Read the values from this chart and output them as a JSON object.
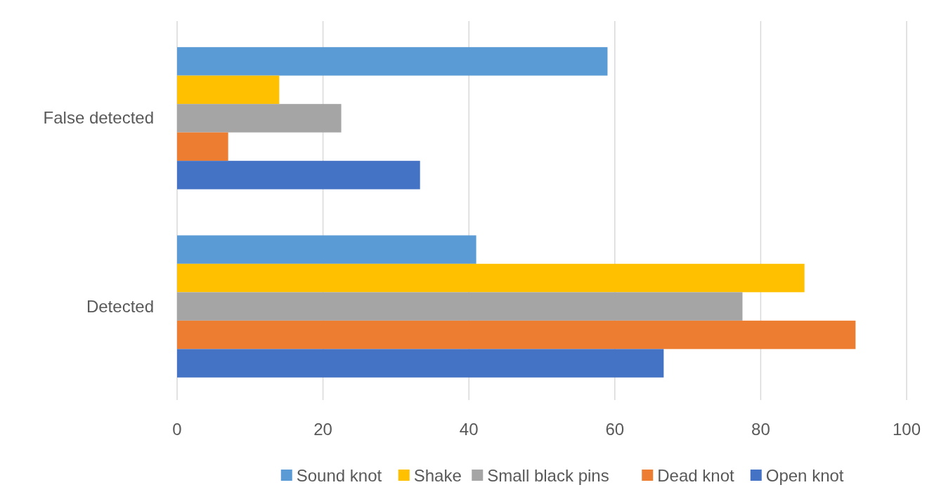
{
  "chart_data": {
    "type": "bar",
    "orientation": "horizontal",
    "categories": [
      "False detected",
      "Detected"
    ],
    "series": [
      {
        "name": "Sound knot",
        "color": "#5b9bd5",
        "values": [
          59,
          41
        ]
      },
      {
        "name": "Shake",
        "color": "#ffc000",
        "values": [
          14,
          86
        ]
      },
      {
        "name": "Small black pins",
        "color": "#a5a5a5",
        "values": [
          22.5,
          77.5
        ]
      },
      {
        "name": "Dead knot",
        "color": "#ed7d31",
        "values": [
          7,
          93
        ]
      },
      {
        "name": "Open knot",
        "color": "#4472c4",
        "values": [
          33.3,
          66.7
        ]
      }
    ],
    "xlim": [
      0,
      100
    ],
    "xticks": [
      0,
      20,
      40,
      60,
      80,
      100
    ],
    "grid": "x",
    "legend": "bottom"
  }
}
